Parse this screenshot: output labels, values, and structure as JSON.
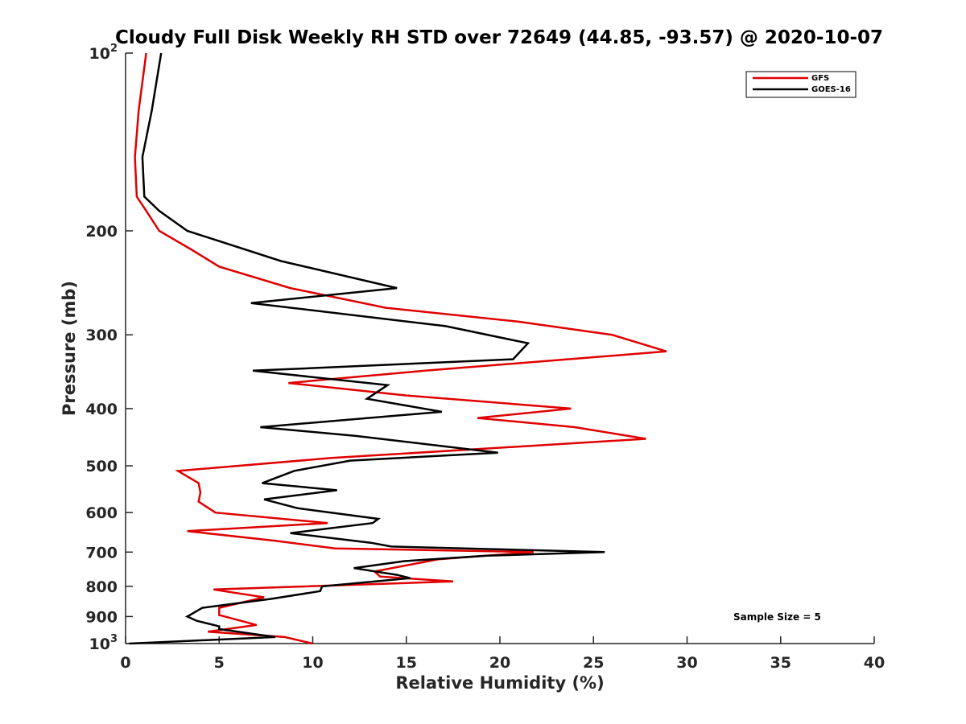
{
  "chart_data": {
    "type": "line",
    "title": "Cloudy Full Disk Weekly RH STD over 72649 (44.85, -93.57) @ 2020-10-07",
    "xlabel": "Relative Humidity (%)",
    "ylabel": "Pressure (mb)",
    "xlim": [
      0,
      40
    ],
    "ylim": [
      100,
      1000
    ],
    "y_scale": "log",
    "y_reversed": true,
    "x_ticks": [
      "0",
      "5",
      "10",
      "15",
      "20",
      "25",
      "30",
      "35",
      "40"
    ],
    "y_ticks": [
      {
        "value": 100,
        "base": "10",
        "exp": "2"
      },
      {
        "value": 200,
        "label": "200"
      },
      {
        "value": 300,
        "label": "300"
      },
      {
        "value": 400,
        "label": "400"
      },
      {
        "value": 500,
        "label": "500"
      },
      {
        "value": 600,
        "label": "600"
      },
      {
        "value": 700,
        "label": "700"
      },
      {
        "value": 800,
        "label": "800"
      },
      {
        "value": 900,
        "label": "900"
      },
      {
        "value": 1000,
        "base": "10",
        "exp": "3"
      }
    ],
    "legend_position": "top-right",
    "grid": false,
    "annotation": "Sample Size = 5",
    "series": [
      {
        "name": "GFS",
        "color": "#e00000",
        "points": [
          [
            1.1,
            100
          ],
          [
            0.7,
            125
          ],
          [
            0.5,
            150
          ],
          [
            0.6,
            175
          ],
          [
            1.1,
            185
          ],
          [
            1.8,
            200
          ],
          [
            3.5,
            215
          ],
          [
            5.0,
            230
          ],
          [
            8.8,
            250
          ],
          [
            13.9,
            270
          ],
          [
            21.0,
            285
          ],
          [
            26.0,
            300
          ],
          [
            28.9,
            320
          ],
          [
            16.0,
            345
          ],
          [
            8.7,
            362
          ],
          [
            15.0,
            380
          ],
          [
            23.8,
            400
          ],
          [
            18.8,
            415
          ],
          [
            24.0,
            430
          ],
          [
            27.8,
            450
          ],
          [
            11.0,
            485
          ],
          [
            2.8,
            510
          ],
          [
            3.9,
            535
          ],
          [
            4.0,
            555
          ],
          [
            3.9,
            575
          ],
          [
            4.8,
            600
          ],
          [
            10.8,
            625
          ],
          [
            3.3,
            645
          ],
          [
            8.0,
            670
          ],
          [
            11.2,
            690
          ],
          [
            21.8,
            700
          ],
          [
            16.7,
            720
          ],
          [
            13.3,
            755
          ],
          [
            13.6,
            770
          ],
          [
            17.5,
            785
          ],
          [
            4.7,
            810
          ],
          [
            7.4,
            835
          ],
          [
            5.0,
            870
          ],
          [
            5.0,
            895
          ],
          [
            7.0,
            930
          ],
          [
            4.4,
            955
          ],
          [
            8.5,
            975
          ],
          [
            10.0,
            1000
          ]
        ]
      },
      {
        "name": "GOES-16",
        "color": "#000000",
        "points": [
          [
            1.9,
            100
          ],
          [
            1.4,
            125
          ],
          [
            0.9,
            150
          ],
          [
            1.0,
            175
          ],
          [
            1.8,
            185
          ],
          [
            3.3,
            200
          ],
          [
            8.3,
            225
          ],
          [
            14.5,
            250
          ],
          [
            6.7,
            265
          ],
          [
            17.1,
            290
          ],
          [
            21.5,
            310
          ],
          [
            20.7,
            330
          ],
          [
            6.8,
            345
          ],
          [
            14.0,
            365
          ],
          [
            12.9,
            385
          ],
          [
            16.9,
            405
          ],
          [
            7.2,
            430
          ],
          [
            12.3,
            445
          ],
          [
            19.9,
            475
          ],
          [
            12.0,
            490
          ],
          [
            9.0,
            510
          ],
          [
            7.3,
            535
          ],
          [
            11.3,
            550
          ],
          [
            7.4,
            570
          ],
          [
            9.2,
            590
          ],
          [
            13.5,
            615
          ],
          [
            13.2,
            625
          ],
          [
            8.8,
            650
          ],
          [
            13.1,
            675
          ],
          [
            14.2,
            685
          ],
          [
            25.6,
            700
          ],
          [
            19.3,
            710
          ],
          [
            14.9,
            725
          ],
          [
            12.2,
            745
          ],
          [
            14.5,
            765
          ],
          [
            15.2,
            775
          ],
          [
            10.5,
            800
          ],
          [
            10.4,
            815
          ],
          [
            7.8,
            840
          ],
          [
            4.1,
            870
          ],
          [
            3.3,
            900
          ],
          [
            3.8,
            915
          ],
          [
            5.0,
            935
          ],
          [
            5.0,
            945
          ],
          [
            8.0,
            975
          ],
          [
            0.2,
            1000
          ]
        ]
      }
    ]
  }
}
